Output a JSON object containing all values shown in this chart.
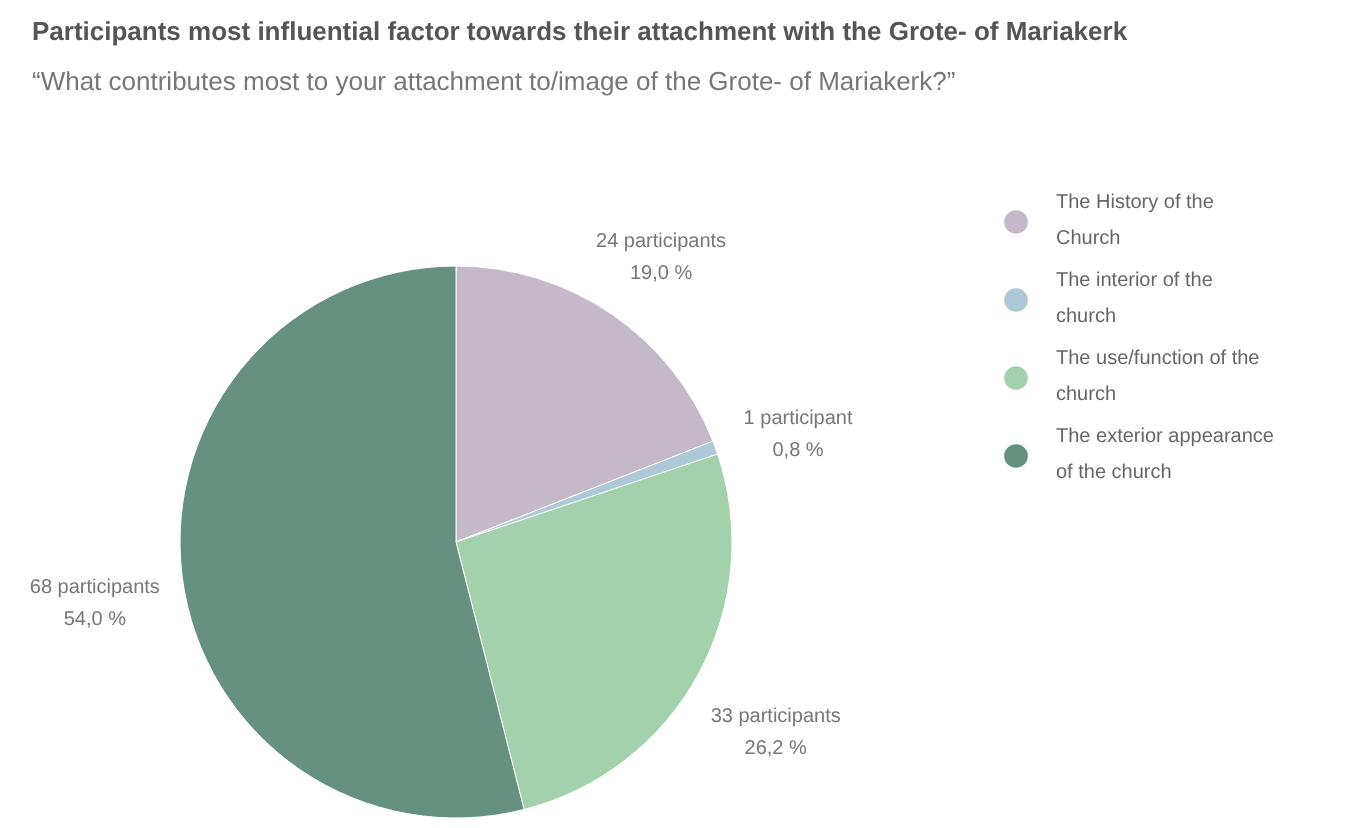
{
  "chart_data": {
    "type": "pie",
    "title": "Participants most influential factor towards their attachment with the Grote- of Mariakerk",
    "subtitle": "“What contributes most to your attachment to/image of the Grote- of Mariakerk?”",
    "categories": [
      "The History of the Church",
      "The interior of the church",
      "The use/function of the church",
      "The exterior appearance of the church"
    ],
    "values": [
      24,
      1,
      33,
      68
    ],
    "colors": [
      "#c5b8c9",
      "#adc9d8",
      "#a3d1ab",
      "#66907f"
    ],
    "value_labels": [
      "24 participants\n19,0 %",
      "1 participant\n0,8 %",
      "33 participants\n26,2 %",
      "68 participants\n54,0 %"
    ],
    "legend": "top right"
  }
}
